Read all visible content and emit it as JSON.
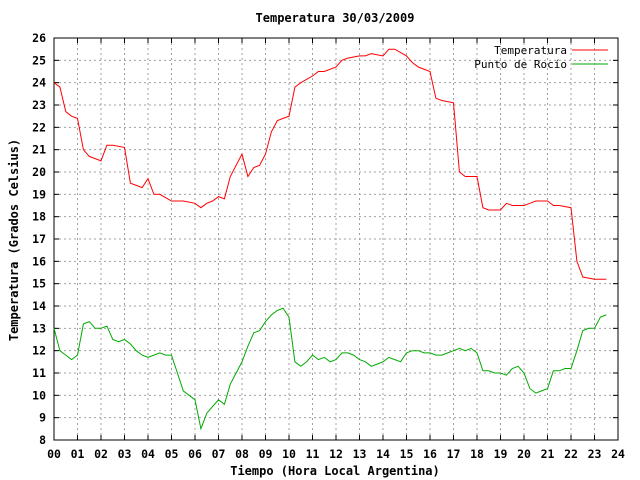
{
  "chart_data": {
    "type": "line",
    "title": "Temperatura 30/03/2009",
    "xlabel": "Tiempo (Hora Local Argentina)",
    "ylabel": "Temperatura (Grados Celsius)",
    "xlim": [
      0,
      24
    ],
    "ylim": [
      8,
      26
    ],
    "x_ticks": [
      0,
      1,
      2,
      3,
      4,
      5,
      6,
      7,
      8,
      9,
      10,
      11,
      12,
      13,
      14,
      15,
      16,
      17,
      18,
      19,
      20,
      21,
      22,
      23,
      24
    ],
    "x_tick_labels": [
      "00",
      "01",
      "02",
      "03",
      "04",
      "05",
      "06",
      "07",
      "08",
      "09",
      "10",
      "11",
      "12",
      "13",
      "14",
      "15",
      "16",
      "17",
      "18",
      "19",
      "20",
      "21",
      "22",
      "23",
      "24"
    ],
    "y_ticks": [
      8,
      9,
      10,
      11,
      12,
      13,
      14,
      15,
      16,
      17,
      18,
      19,
      20,
      21,
      22,
      23,
      24,
      25,
      26
    ],
    "grid": true,
    "legend_position": "top-right",
    "series": [
      {
        "name": "Temperatura",
        "color": "#ff0000",
        "x": [
          0.0,
          0.25,
          0.5,
          0.75,
          1.0,
          1.25,
          1.5,
          2.0,
          2.25,
          2.5,
          3.0,
          3.25,
          3.5,
          3.75,
          4.0,
          4.25,
          4.5,
          5.0,
          5.5,
          6.0,
          6.25,
          6.5,
          6.75,
          7.0,
          7.25,
          7.5,
          7.75,
          8.0,
          8.25,
          8.5,
          8.75,
          9.0,
          9.25,
          9.5,
          9.75,
          10.0,
          10.25,
          10.5,
          11.0,
          11.25,
          11.5,
          12.0,
          12.25,
          12.5,
          13.0,
          13.25,
          13.5,
          14.0,
          14.25,
          14.5,
          15.0,
          15.25,
          15.5,
          16.0,
          16.25,
          16.5,
          17.0,
          17.25,
          17.5,
          18.0,
          18.25,
          18.5,
          19.0,
          19.25,
          19.5,
          20.0,
          20.25,
          20.5,
          21.0,
          21.25,
          21.5,
          22.0,
          22.25,
          22.5,
          23.0,
          23.5
        ],
        "y": [
          24.0,
          23.8,
          22.7,
          22.5,
          22.4,
          21.0,
          20.7,
          20.5,
          21.2,
          21.2,
          21.1,
          19.5,
          19.4,
          19.3,
          19.7,
          19.0,
          19.0,
          18.7,
          18.7,
          18.6,
          18.4,
          18.6,
          18.7,
          18.9,
          18.8,
          19.8,
          20.3,
          20.8,
          19.8,
          20.2,
          20.3,
          20.8,
          21.8,
          22.3,
          22.4,
          22.5,
          23.8,
          24.0,
          24.3,
          24.5,
          24.5,
          24.7,
          25.0,
          25.1,
          25.2,
          25.2,
          25.3,
          25.2,
          25.5,
          25.5,
          25.2,
          24.9,
          24.7,
          24.5,
          23.3,
          23.2,
          23.1,
          20.0,
          19.8,
          19.8,
          18.4,
          18.3,
          18.3,
          18.6,
          18.5,
          18.5,
          18.6,
          18.7,
          18.7,
          18.5,
          18.5,
          18.4,
          16.0,
          15.3,
          15.2,
          15.2
        ]
      },
      {
        "name": "Punto de Rocío",
        "color": "#00aa00",
        "x": [
          0.0,
          0.25,
          0.5,
          0.75,
          1.0,
          1.25,
          1.5,
          1.75,
          2.0,
          2.25,
          2.5,
          2.75,
          3.0,
          3.25,
          3.5,
          3.75,
          4.0,
          4.25,
          4.5,
          4.75,
          5.0,
          5.25,
          5.5,
          5.75,
          6.0,
          6.25,
          6.5,
          6.75,
          7.0,
          7.25,
          7.5,
          7.75,
          8.0,
          8.25,
          8.5,
          8.75,
          9.0,
          9.25,
          9.5,
          9.75,
          10.0,
          10.25,
          10.5,
          10.75,
          11.0,
          11.25,
          11.5,
          11.75,
          12.0,
          12.25,
          12.5,
          12.75,
          13.0,
          13.25,
          13.5,
          13.75,
          14.0,
          14.25,
          14.5,
          14.75,
          15.0,
          15.25,
          15.5,
          15.75,
          16.0,
          16.25,
          16.5,
          16.75,
          17.0,
          17.25,
          17.5,
          17.75,
          18.0,
          18.25,
          18.5,
          18.75,
          19.0,
          19.25,
          19.5,
          19.75,
          20.0,
          20.25,
          20.5,
          20.75,
          21.0,
          21.25,
          21.5,
          21.75,
          22.0,
          22.25,
          22.5,
          22.75,
          23.0,
          23.25,
          23.5
        ],
        "y": [
          13.0,
          12.0,
          11.8,
          11.6,
          11.8,
          13.2,
          13.3,
          13.0,
          13.0,
          13.1,
          12.5,
          12.4,
          12.5,
          12.3,
          12.0,
          11.8,
          11.7,
          11.8,
          11.9,
          11.8,
          11.8,
          11.0,
          10.2,
          10.0,
          9.8,
          8.5,
          9.2,
          9.5,
          9.8,
          9.6,
          10.5,
          11.0,
          11.5,
          12.2,
          12.8,
          12.9,
          13.3,
          13.6,
          13.8,
          13.9,
          13.5,
          11.5,
          11.3,
          11.5,
          11.8,
          11.6,
          11.7,
          11.5,
          11.6,
          11.9,
          11.9,
          11.8,
          11.6,
          11.5,
          11.3,
          11.4,
          11.5,
          11.7,
          11.6,
          11.5,
          11.9,
          12.0,
          12.0,
          11.9,
          11.9,
          11.8,
          11.8,
          11.9,
          12.0,
          12.1,
          12.0,
          12.1,
          11.9,
          11.1,
          11.1,
          11.0,
          11.0,
          10.9,
          11.2,
          11.3,
          11.0,
          10.3,
          10.1,
          10.2,
          10.3,
          11.1,
          11.1,
          11.2,
          11.2,
          12.0,
          12.9,
          13.0,
          13.0,
          13.5,
          13.6
        ]
      }
    ]
  }
}
